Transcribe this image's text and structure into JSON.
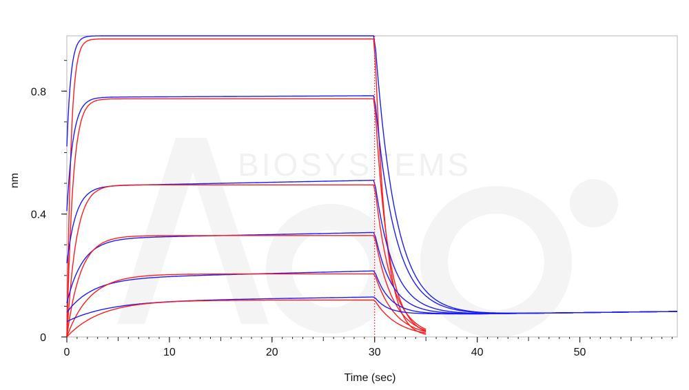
{
  "chart_data": {
    "type": "line",
    "title": "",
    "xlabel": "Time (sec)",
    "ylabel": "nm",
    "xlim": [
      0,
      59.5
    ],
    "ylim": [
      0,
      0.98
    ],
    "x_ticks": [
      0,
      10,
      20,
      30,
      40,
      50
    ],
    "x_tick_labels": [
      "0",
      "10",
      "20",
      "30",
      "40",
      "50"
    ],
    "y_ticks": [
      0,
      0.4,
      0.8
    ],
    "y_tick_labels": [
      "0",
      "0.4",
      "0.8"
    ],
    "grid": false,
    "legend": "none",
    "association_end": 30,
    "fit_end": 35,
    "series_colors": {
      "measured": "#1a1aff",
      "fit": "#ff1a1a"
    },
    "watermark": {
      "text": "BIOSYSTEMS",
      "logo": "ACRO"
    },
    "series": [
      {
        "kind": "measured",
        "plateau": 0.98,
        "end_value": 0.98,
        "kobs": 2.5,
        "koff": 0.5,
        "baseline": 0.075,
        "start": 0.62
      },
      {
        "kind": "fit",
        "plateau": 0.97,
        "end_value": 0.97,
        "kobs": 2.5,
        "koff": 0.95,
        "baseline": 0.0
      },
      {
        "kind": "measured",
        "plateau": 0.78,
        "end_value": 0.785,
        "kobs": 1.6,
        "koff": 0.5,
        "baseline": 0.075,
        "start": 0.41
      },
      {
        "kind": "fit",
        "plateau": 0.775,
        "end_value": 0.775,
        "kobs": 1.7,
        "koff": 0.75,
        "baseline": 0.0
      },
      {
        "kind": "measured",
        "plateau": 0.49,
        "end_value": 0.51,
        "kobs": 1.1,
        "koff": 0.55,
        "baseline": 0.075,
        "start": 0.24
      },
      {
        "kind": "fit",
        "plateau": 0.495,
        "end_value": 0.495,
        "kobs": 1.1,
        "koff": 0.6,
        "baseline": 0.0
      },
      {
        "kind": "measured",
        "plateau": 0.32,
        "end_value": 0.34,
        "kobs": 0.65,
        "koff": 0.6,
        "baseline": 0.075,
        "start": 0.11
      },
      {
        "kind": "fit",
        "plateau": 0.33,
        "end_value": 0.33,
        "kobs": 0.75,
        "koff": 0.55,
        "baseline": 0.0
      },
      {
        "kind": "measured",
        "plateau": 0.19,
        "end_value": 0.215,
        "kobs": 0.4,
        "koff": 0.7,
        "baseline": 0.075,
        "start": 0.08
      },
      {
        "kind": "fit",
        "plateau": 0.205,
        "end_value": 0.205,
        "kobs": 0.45,
        "koff": 0.5,
        "baseline": 0.0
      },
      {
        "kind": "measured",
        "plateau": 0.115,
        "end_value": 0.13,
        "kobs": 0.25,
        "koff": 0.8,
        "baseline": 0.075,
        "start": 0.05
      },
      {
        "kind": "fit",
        "plateau": 0.12,
        "end_value": 0.12,
        "kobs": 0.3,
        "koff": 0.45,
        "baseline": 0.0
      }
    ]
  }
}
